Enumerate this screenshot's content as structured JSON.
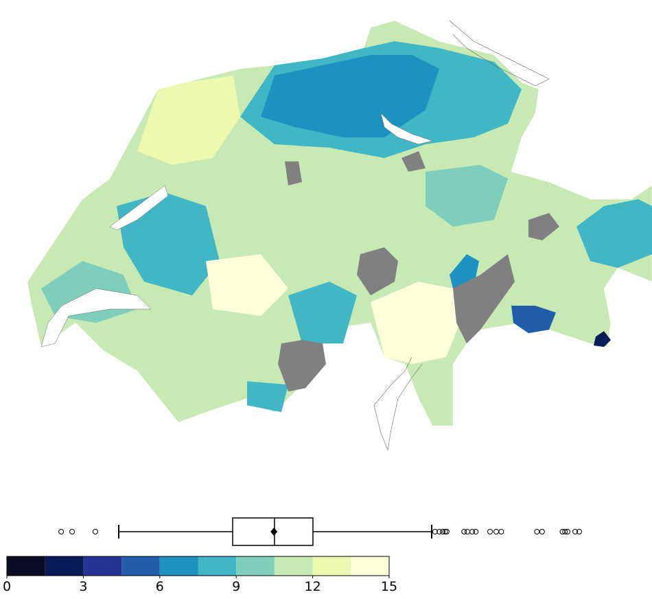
{
  "colorbar": {
    "xlim": [
      0,
      15
    ],
    "ticks": [
      0,
      3,
      6,
      9,
      12,
      15
    ],
    "bins": [
      0,
      1.5,
      3,
      4.5,
      6,
      7.5,
      9,
      10.5,
      12,
      13.5,
      15
    ],
    "colors": [
      "#0b0d24",
      "#081d58",
      "#253494",
      "#225ea8",
      "#1d91c0",
      "#41b6c4",
      "#7fcdbb",
      "#c7e9b4",
      "#edf8b1",
      "#ffffd9"
    ]
  },
  "boxplot": {
    "whislo": 4.39,
    "q1": 8.86,
    "med": 10.5,
    "mean": 10.48,
    "q3": 12.01,
    "whishi": 16.67,
    "fliers": [
      2.13,
      2.56,
      3.47,
      16.8,
      16.97,
      17.1,
      17.2,
      17.26,
      17.94,
      18.07,
      18.26,
      18.4,
      18.96,
      19.2,
      19.4,
      20.8,
      21.0,
      21.8,
      21.9,
      22.0,
      22.3,
      22.46
    ]
  }
}
